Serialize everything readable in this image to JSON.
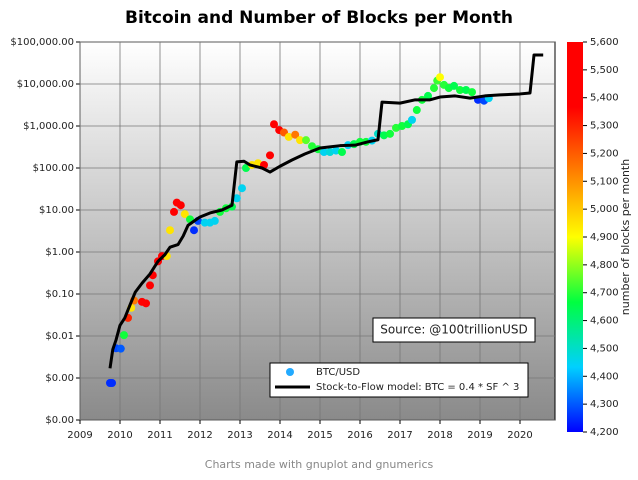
{
  "chart_data": {
    "type": "scatter",
    "title": "Bitcoin and Number of Blocks per Month",
    "log_y": true,
    "grid": true,
    "legend": "lower right",
    "annotation": "Source: @100trillionUSD",
    "xlim": [
      2009,
      2020.875
    ],
    "xticks": [
      2009,
      2010,
      2011,
      2012,
      2013,
      2014,
      2015,
      2016,
      2017,
      2018,
      2019,
      2020
    ],
    "ylim": [
      0.0001,
      100000
    ],
    "yticks": [
      {
        "value": 0.0001,
        "label": "$0.00"
      },
      {
        "value": 0.001,
        "label": "$0.00"
      },
      {
        "value": 0.01,
        "label": "$0.01"
      },
      {
        "value": 0.1,
        "label": "$0.10"
      },
      {
        "value": 1,
        "label": "$1.00"
      },
      {
        "value": 10,
        "label": "$10.00"
      },
      {
        "value": 100,
        "label": "$100.00"
      },
      {
        "value": 1000,
        "label": "$1,000.00"
      },
      {
        "value": 10000,
        "label": "$10,000.00"
      },
      {
        "value": 100000,
        "label": "$100,000.00"
      }
    ],
    "colorbar_label": "number of blocks per month",
    "clim": [
      4200,
      5600
    ],
    "colormap": [
      "#0000ff",
      "#00d0ff",
      "#00ff40",
      "#ffff00",
      "#ff8000",
      "#ff0000",
      "#ff0000"
    ],
    "cticks": [
      {
        "value": 4200,
        "label": "4,200"
      },
      {
        "value": 4300,
        "label": "4,300"
      },
      {
        "value": 4400,
        "label": "4,400"
      },
      {
        "value": 4500,
        "label": "4,500"
      },
      {
        "value": 4600,
        "label": "4,600"
      },
      {
        "value": 4700,
        "label": "4,700"
      },
      {
        "value": 4800,
        "label": "4,800"
      },
      {
        "value": 4900,
        "label": "4,900"
      },
      {
        "value": 5000,
        "label": "5,000"
      },
      {
        "value": 5100,
        "label": "5,100"
      },
      {
        "value": 5200,
        "label": "5,200"
      },
      {
        "value": 5300,
        "label": "5,300"
      },
      {
        "value": 5400,
        "label": "5,400"
      },
      {
        "value": 5500,
        "label": "5,500"
      },
      {
        "value": 5600,
        "label": "5,600"
      }
    ],
    "series": [
      {
        "name": "BTC/USD",
        "type": "scatter",
        "color": "#22aaff",
        "x": [
          2009.75,
          2009.8,
          2009.9,
          2010.02,
          2010.1,
          2010.2,
          2010.28,
          2010.35,
          2010.55,
          2010.65,
          2010.75,
          2010.82,
          2010.95,
          2011.05,
          2011.17,
          2011.25,
          2011.35,
          2011.42,
          2011.52,
          2011.62,
          2011.75,
          2011.85,
          2011.95,
          2012.12,
          2012.25,
          2012.37,
          2012.5,
          2012.65,
          2012.8,
          2012.92,
          2013.05,
          2013.15,
          2013.3,
          2013.45,
          2013.6,
          2013.75,
          2013.85,
          2013.98,
          2014.1,
          2014.22,
          2014.38,
          2014.5,
          2014.65,
          2014.8,
          2014.95,
          2015.1,
          2015.25,
          2015.4,
          2015.55,
          2015.7,
          2015.85,
          2016.0,
          2016.15,
          2016.3,
          2016.45,
          2016.6,
          2016.75,
          2016.9,
          2017.05,
          2017.2,
          2017.3,
          2017.42,
          2017.55,
          2017.7,
          2017.85,
          2017.93,
          2018.0,
          2018.1,
          2018.22,
          2018.35,
          2018.5,
          2018.65,
          2018.8,
          2018.95,
          2019.1,
          2019.22
        ],
        "values": [
          0.00076,
          0.00076,
          0.0051,
          0.005,
          0.0105,
          0.027,
          0.047,
          0.07,
          0.065,
          0.06,
          0.16,
          0.28,
          0.6,
          0.8,
          0.8,
          3.3,
          9,
          15,
          13,
          8,
          6,
          3.3,
          5.5,
          5,
          5,
          5.5,
          9,
          11,
          12,
          19,
          33,
          100,
          118,
          130,
          118,
          200,
          1100,
          800,
          700,
          550,
          620,
          460,
          460,
          330,
          280,
          240,
          240,
          260,
          240,
          350,
          370,
          420,
          420,
          450,
          650,
          600,
          650,
          900,
          1000,
          1100,
          1400,
          2400,
          4200,
          5200,
          8000,
          12000,
          14500,
          9500,
          8000,
          9000,
          7200,
          7200,
          6400,
          4200,
          4000,
          4600
        ],
        "color_values": [
          4250,
          4250,
          4280,
          4300,
          4680,
          5300,
          4950,
          5150,
          5500,
          5450,
          5500,
          5450,
          5500,
          5450,
          4950,
          4950,
          5450,
          5500,
          5450,
          4950,
          4680,
          4250,
          4280,
          4450,
          4450,
          4450,
          4680,
          4680,
          4650,
          4450,
          4450,
          4650,
          4950,
          4950,
          5450,
          5450,
          5500,
          5450,
          5200,
          4950,
          5150,
          4950,
          4750,
          4700,
          4680,
          4450,
          4480,
          4450,
          4650,
          4450,
          4650,
          4680,
          4680,
          4450,
          4500,
          4650,
          4680,
          4700,
          4680,
          4650,
          4450,
          4680,
          4680,
          4650,
          4700,
          4720,
          4900,
          4700,
          4680,
          4650,
          4680,
          4650,
          4680,
          4250,
          4280,
          4450
        ]
      },
      {
        "name": "Stock-to-Flow model: BTC = 0.4 * SF ^ 3",
        "type": "line",
        "color": "#000000",
        "x": [
          2009.75,
          2009.82,
          2009.9,
          2010.0,
          2010.12,
          2010.25,
          2010.38,
          2010.55,
          2010.75,
          2010.95,
          2011.12,
          2011.25,
          2011.45,
          2011.58,
          2011.7,
          2011.88,
          2012.0,
          2012.25,
          2012.55,
          2012.8,
          2012.92,
          2013.1,
          2013.25,
          2013.55,
          2013.75,
          2014.0,
          2014.3,
          2014.62,
          2015.0,
          2015.5,
          2015.88,
          2016.2,
          2016.45,
          2016.55,
          2017.0,
          2017.38,
          2017.75,
          2018.0,
          2018.38,
          2018.75,
          2019.12,
          2019.5,
          2020.0,
          2020.25,
          2020.35,
          2020.58
        ],
        "values": [
          0.0017,
          0.0048,
          0.008,
          0.018,
          0.027,
          0.055,
          0.11,
          0.18,
          0.3,
          0.6,
          0.86,
          1.3,
          1.5,
          2.4,
          4.3,
          5.7,
          6.8,
          8.5,
          10,
          13,
          140,
          145,
          118,
          100,
          80,
          110,
          155,
          215,
          300,
          340,
          350,
          420,
          470,
          3700,
          3500,
          4200,
          4200,
          4900,
          5200,
          4600,
          5200,
          5500,
          5800,
          6100,
          49000,
          49000
        ]
      }
    ]
  },
  "caption": "Charts made with gnuplot and gnumerics"
}
